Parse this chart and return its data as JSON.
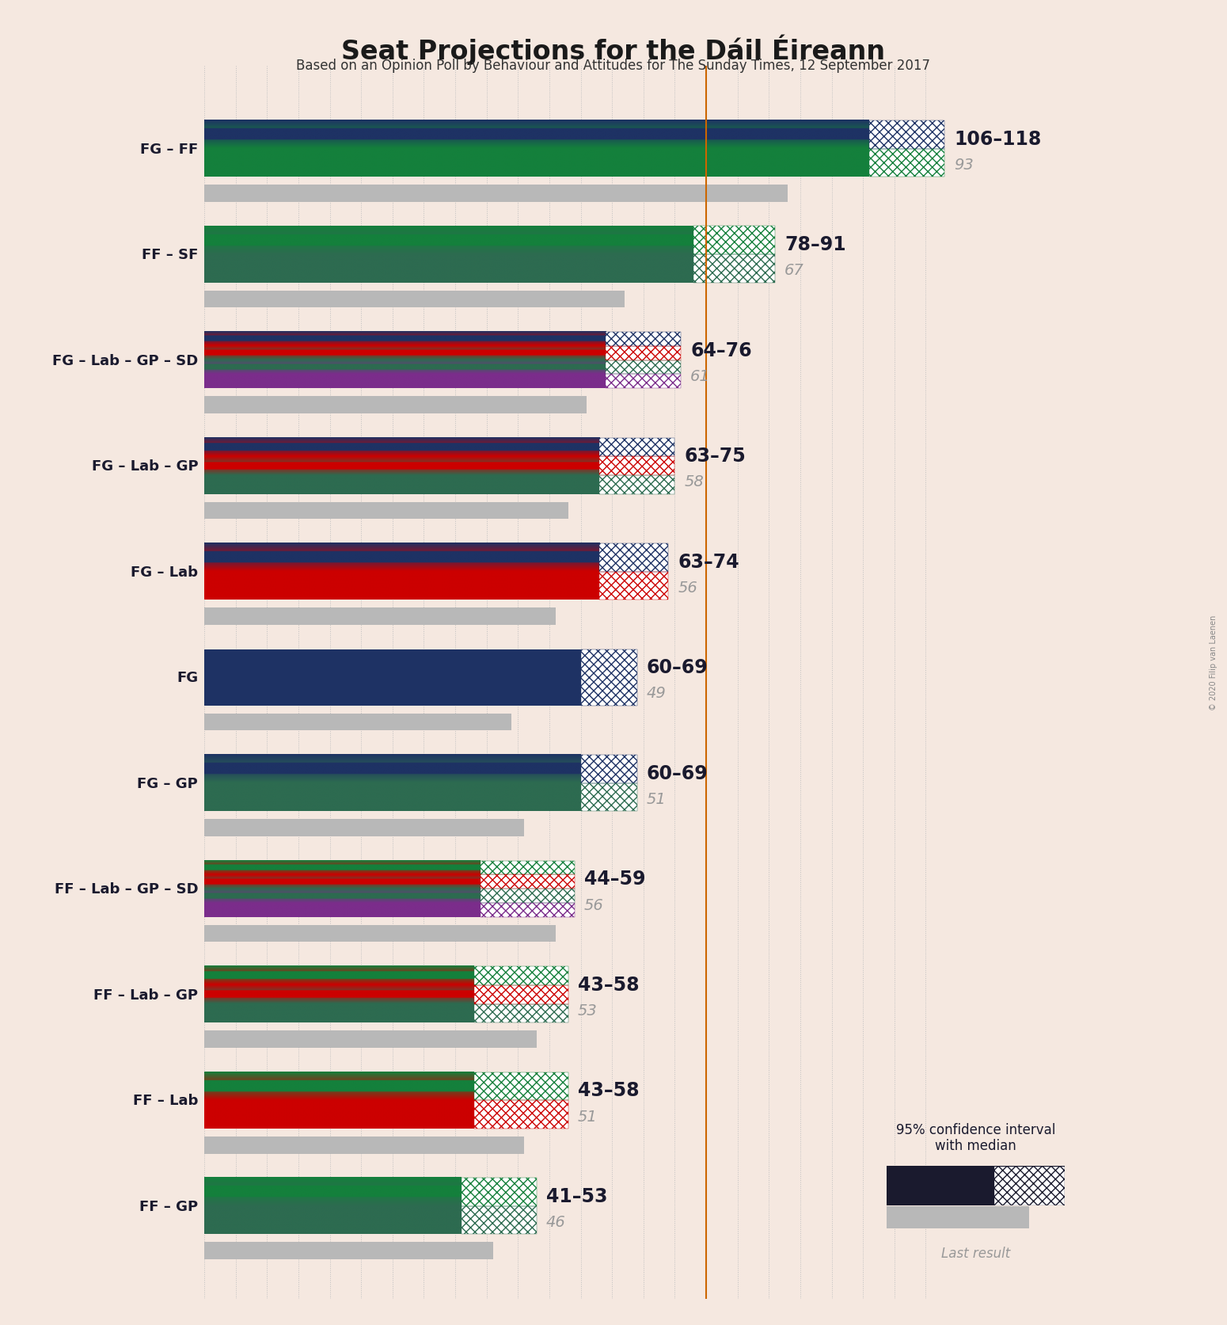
{
  "title": "Seat Projections for the Dáil Éireann",
  "subtitle": "Based on an Opinion Poll by Behaviour and Attitudes for The Sunday Times, 12 September 2017",
  "copyright": "© 2020 Filip van Laenen",
  "bg_color": "#f5e8e0",
  "majority_line": 80,
  "x_max": 120,
  "coalitions": [
    {
      "label": "FG – FF",
      "low": 106,
      "high": 118,
      "last_result": 93,
      "colors": [
        "#1e3264",
        "#14803c"
      ],
      "hatch_color": "#1e3264"
    },
    {
      "label": "FF – SF",
      "low": 78,
      "high": 91,
      "last_result": 67,
      "colors": [
        "#14803c",
        "#2d6b50"
      ],
      "hatch_color": "#14803c"
    },
    {
      "label": "FG – Lab – GP – SD",
      "low": 64,
      "high": 76,
      "last_result": 61,
      "colors": [
        "#1e3264",
        "#cc0000",
        "#2d6b50",
        "#7b2d8b"
      ],
      "hatch_color": "#1e3264"
    },
    {
      "label": "FG – Lab – GP",
      "low": 63,
      "high": 75,
      "last_result": 58,
      "colors": [
        "#1e3264",
        "#cc0000",
        "#2d6b50"
      ],
      "hatch_color": "#1e3264"
    },
    {
      "label": "FG – Lab",
      "low": 63,
      "high": 74,
      "last_result": 56,
      "colors": [
        "#1e3264",
        "#cc0000"
      ],
      "hatch_color": "#1e3264"
    },
    {
      "label": "FG",
      "low": 60,
      "high": 69,
      "last_result": 49,
      "colors": [
        "#1e3264"
      ],
      "hatch_color": "#1e3264"
    },
    {
      "label": "FG – GP",
      "low": 60,
      "high": 69,
      "last_result": 51,
      "colors": [
        "#1e3264",
        "#2d6b50"
      ],
      "hatch_color": "#1e3264"
    },
    {
      "label": "FF – Lab – GP – SD",
      "low": 44,
      "high": 59,
      "last_result": 56,
      "colors": [
        "#14803c",
        "#cc0000",
        "#2d6b50",
        "#7b2d8b"
      ],
      "hatch_color": "#14803c"
    },
    {
      "label": "FF – Lab – GP",
      "low": 43,
      "high": 58,
      "last_result": 53,
      "colors": [
        "#14803c",
        "#cc0000",
        "#2d6b50"
      ],
      "hatch_color": "#14803c"
    },
    {
      "label": "FF – Lab",
      "low": 43,
      "high": 58,
      "last_result": 51,
      "colors": [
        "#14803c",
        "#cc0000"
      ],
      "hatch_color": "#14803c"
    },
    {
      "label": "FF – GP",
      "low": 41,
      "high": 53,
      "last_result": 46,
      "colors": [
        "#14803c",
        "#2d6b50"
      ],
      "hatch_color": "#14803c"
    }
  ]
}
